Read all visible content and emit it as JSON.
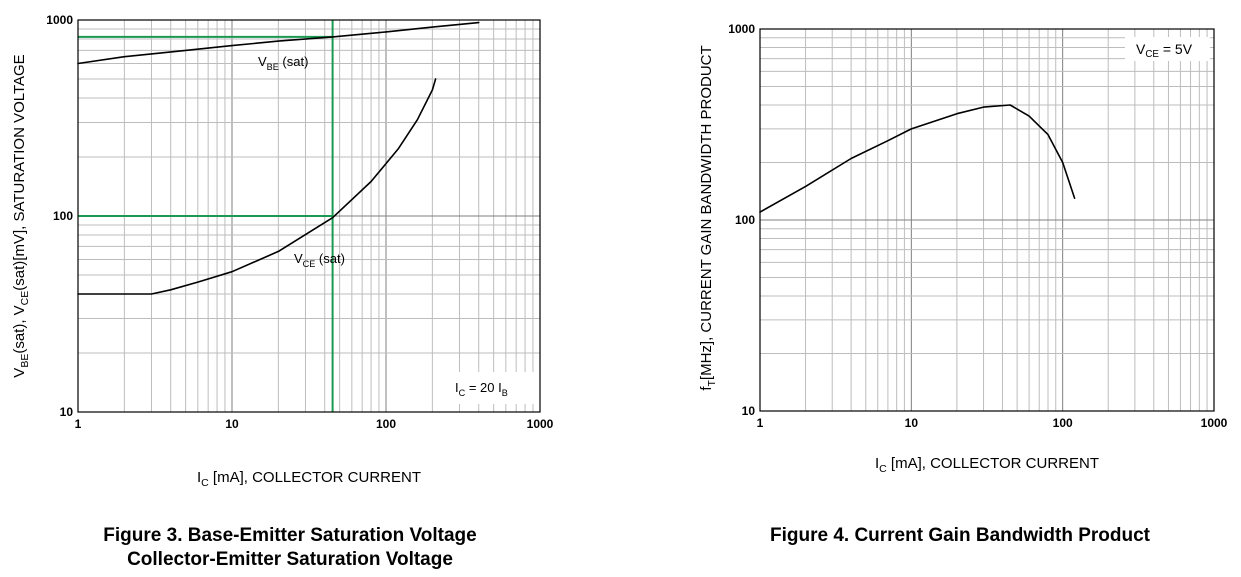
{
  "chart_data": [
    {
      "type": "line",
      "title": "Figure 3. Base-Emitter Saturation Voltage",
      "subtitle": "Collector-Emitter Saturation Voltage",
      "xlabel": {
        "main": "I",
        "sub": "C",
        "rest": " [mA], COLLECTOR CURRENT"
      },
      "ylabel": {
        "p1": "V",
        "s1": "BE",
        "p2": "(sat), V",
        "s2": "CE",
        "p3": "(sat)[mV], SATURATION VOLTAGE"
      },
      "x_scale": "log",
      "y_scale": "log",
      "xlim": [
        1,
        1000
      ],
      "ylim": [
        10,
        1000
      ],
      "xticks": [
        "1",
        "10",
        "100",
        "1000"
      ],
      "yticks": [
        "10",
        "100",
        "1000"
      ],
      "grid": true,
      "annotation": {
        "p1": "I",
        "s1": "C",
        "p2": " = 20 I",
        "s2": "B"
      },
      "series": [
        {
          "name": "V(sat)",
          "label": {
            "main": "V",
            "sub": "BE",
            "rest": " (sat)"
          },
          "x": [
            1,
            2,
            5,
            10,
            20,
            45,
            100,
            200,
            400
          ],
          "y": [
            600,
            650,
            700,
            740,
            780,
            820,
            870,
            920,
            970
          ]
        },
        {
          "name": "V(sat)",
          "label": {
            "main": "V",
            "sub": "CE",
            "rest": " (sat)"
          },
          "x": [
            1,
            2,
            3,
            4,
            6,
            10,
            20,
            45,
            80,
            120,
            160,
            200,
            210
          ],
          "y": [
            40,
            40,
            40,
            42,
            46,
            52,
            66,
            98,
            150,
            220,
            310,
            440,
            500
          ]
        }
      ],
      "guide_lines": {
        "x": 45,
        "y": [
          100,
          820
        ],
        "color": "#1a9a50"
      }
    },
    {
      "type": "line",
      "title": "Figure 4. Current Gain Bandwidth Product",
      "xlabel": {
        "main": "I",
        "sub": "C",
        "rest": " [mA], COLLECTOR CURRENT"
      },
      "ylabel": {
        "p1": "f",
        "s1": "T",
        "p2": "[MHz], CURRENT GAIN BANDWIDTH PRODUCT"
      },
      "x_scale": "log",
      "y_scale": "log",
      "xlim": [
        1,
        1000
      ],
      "ylim": [
        10,
        1000
      ],
      "xticks": [
        "1",
        "10",
        "100",
        "1000"
      ],
      "yticks": [
        "10",
        "100",
        "1000"
      ],
      "grid": true,
      "legend": {
        "main": "V",
        "sub": "CE",
        "rest": " = 5V"
      },
      "series": [
        {
          "name": "V = 5V",
          "x": [
            1,
            2,
            4,
            7,
            10,
            20,
            30,
            45,
            60,
            80,
            100,
            120
          ],
          "y": [
            110,
            150,
            210,
            260,
            300,
            360,
            390,
            400,
            350,
            280,
            200,
            130
          ]
        }
      ]
    }
  ]
}
